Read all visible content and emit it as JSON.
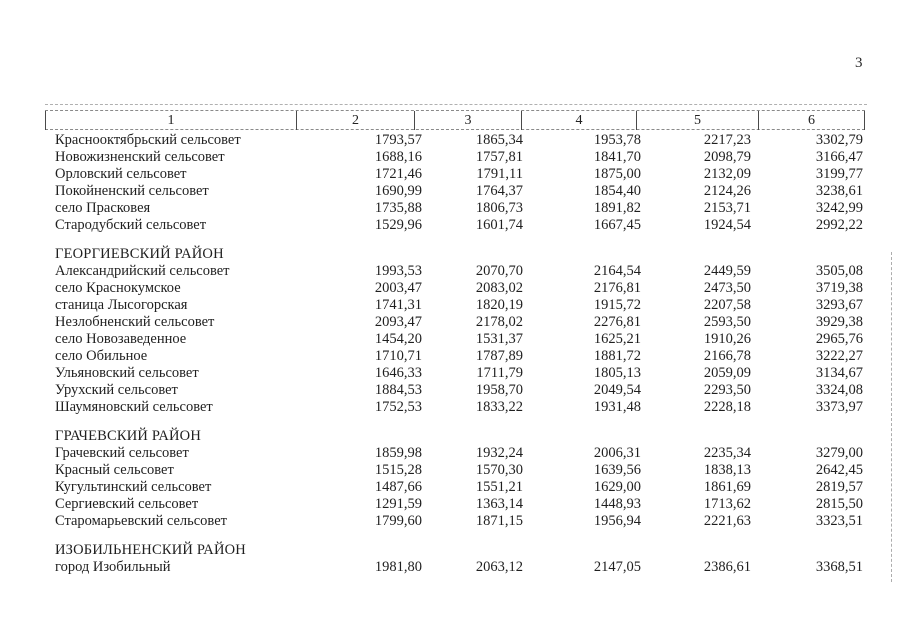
{
  "page": {
    "number": "3"
  },
  "table": {
    "header_columns": [
      "1",
      "2",
      "3",
      "4",
      "5",
      "6"
    ],
    "sections": [
      {
        "district": null,
        "rows": [
          {
            "name": "Краснооктябрьский сельсовет",
            "values": [
              "1793,57",
              "1865,34",
              "1953,78",
              "2217,23",
              "3302,79"
            ]
          },
          {
            "name": "Новожизненский сельсовет",
            "values": [
              "1688,16",
              "1757,81",
              "1841,70",
              "2098,79",
              "3166,47"
            ]
          },
          {
            "name": "Орловский сельсовет",
            "values": [
              "1721,46",
              "1791,11",
              "1875,00",
              "2132,09",
              "3199,77"
            ]
          },
          {
            "name": "Покойненский сельсовет",
            "values": [
              "1690,99",
              "1764,37",
              "1854,40",
              "2124,26",
              "3238,61"
            ]
          },
          {
            "name": "село Прасковея",
            "values": [
              "1735,88",
              "1806,73",
              "1891,82",
              "2153,71",
              "3242,99"
            ]
          },
          {
            "name": "Стародубский сельсовет",
            "values": [
              "1529,96",
              "1601,74",
              "1667,45",
              "1924,54",
              "2992,22"
            ]
          }
        ]
      },
      {
        "district": "ГЕОРГИЕВСКИЙ РАЙОН",
        "rows": [
          {
            "name": "Александрийский сельсовет",
            "values": [
              "1993,53",
              "2070,70",
              "2164,54",
              "2449,59",
              "3505,08"
            ]
          },
          {
            "name": "село Краснокумское",
            "values": [
              "2003,47",
              "2083,02",
              "2176,81",
              "2473,50",
              "3719,38"
            ]
          },
          {
            "name": "станица Лысогорская",
            "values": [
              "1741,31",
              "1820,19",
              "1915,72",
              "2207,58",
              "3293,67"
            ]
          },
          {
            "name": "Незлобненский сельсовет",
            "values": [
              "2093,47",
              "2178,02",
              "2276,81",
              "2593,50",
              "3929,38"
            ]
          },
          {
            "name": "село Новозаведенное",
            "values": [
              "1454,20",
              "1531,37",
              "1625,21",
              "1910,26",
              "2965,76"
            ]
          },
          {
            "name": "село Обильное",
            "values": [
              "1710,71",
              "1787,89",
              "1881,72",
              "2166,78",
              "3222,27"
            ]
          },
          {
            "name": "Ульяновский сельсовет",
            "values": [
              "1646,33",
              "1711,79",
              "1805,13",
              "2059,09",
              "3134,67"
            ]
          },
          {
            "name": "Урухский сельсовет",
            "values": [
              "1884,53",
              "1958,70",
              "2049,54",
              "2293,50",
              "3324,08"
            ]
          },
          {
            "name": "Шаумяновский сельсовет",
            "values": [
              "1752,53",
              "1833,22",
              "1931,48",
              "2228,18",
              "3373,97"
            ]
          }
        ]
      },
      {
        "district": "ГРАЧЕВСКИЙ РАЙОН",
        "rows": [
          {
            "name": "Грачевский сельсовет",
            "values": [
              "1859,98",
              "1932,24",
              "2006,31",
              "2235,34",
              "3279,00"
            ]
          },
          {
            "name": "Красный сельсовет",
            "values": [
              "1515,28",
              "1570,30",
              "1639,56",
              "1838,13",
              "2642,45"
            ]
          },
          {
            "name": "Кугультинский сельсовет",
            "values": [
              "1487,66",
              "1551,21",
              "1629,00",
              "1861,69",
              "2819,57"
            ]
          },
          {
            "name": "Сергиевский сельсовет",
            "values": [
              "1291,59",
              "1363,14",
              "1448,93",
              "1713,62",
              "2815,50"
            ]
          },
          {
            "name": "Старомарьевский сельсовет",
            "values": [
              "1799,60",
              "1871,15",
              "1956,94",
              "2221,63",
              "3323,51"
            ]
          }
        ]
      },
      {
        "district": "ИЗОБИЛЬНЕНСКИЙ РАЙОН",
        "rows": [
          {
            "name": "город Изобильный",
            "values": [
              "1981,80",
              "2063,12",
              "2147,05",
              "2386,61",
              "3368,51"
            ]
          }
        ]
      }
    ]
  }
}
